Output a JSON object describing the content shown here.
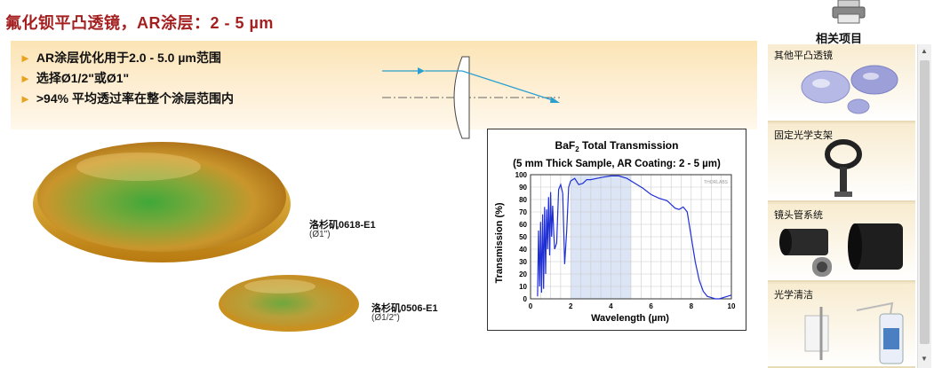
{
  "page": {
    "title": "氟化钡平凸透镜，AR涂层：2 - 5 µm"
  },
  "features": [
    "AR涂层优化用于2.0 - 5.0 µm范围",
    "选择Ø1/2\"或Ø1\"",
    ">94% 平均透过率在整个涂层范围内"
  ],
  "lenses": [
    {
      "part": "洛杉矶0618-E1",
      "size": "(Ø1\")"
    },
    {
      "part": "洛杉矶0506-E1",
      "size": "(Ø1/2\")"
    }
  ],
  "related": {
    "title": "相关项目",
    "items": [
      {
        "label": "其他平凸透镜"
      },
      {
        "label": "固定光学支架"
      },
      {
        "label": "镜头管系统"
      },
      {
        "label": "光学清洁"
      }
    ]
  },
  "chart_data": {
    "type": "line",
    "title_line1": "BaF",
    "title_sub": "2",
    "title_rest": " Total Transmission",
    "title_line2": "(5 mm Thick Sample, AR Coating: 2 - 5 µm)",
    "xlabel": "Wavelength (µm)",
    "ylabel": "Transmission (%)",
    "xlim": [
      0,
      10
    ],
    "ylim": [
      0,
      100
    ],
    "xticks": [
      0,
      2,
      4,
      6,
      8,
      10
    ],
    "yticks": [
      0,
      10,
      20,
      30,
      40,
      50,
      60,
      70,
      80,
      90,
      100
    ],
    "watermark": "THORLABS",
    "shaded_region": [
      2,
      5
    ],
    "colors": {
      "line": "#1f2fd6",
      "shade": "#dbe5f5",
      "grid": "#cccccc"
    },
    "series": [
      {
        "x": [
          0.35,
          0.4,
          0.45,
          0.5,
          0.55,
          0.6,
          0.65,
          0.7,
          0.75,
          0.8,
          0.85,
          0.9,
          0.95,
          1.0,
          1.05,
          1.1,
          1.15,
          1.2,
          1.3,
          1.4,
          1.5,
          1.6,
          1.7,
          1.8,
          1.9,
          2.0,
          2.2,
          2.4,
          2.6,
          2.8,
          3.0,
          3.3,
          3.6,
          4.0,
          4.4,
          4.8,
          5.2,
          5.6,
          6.0,
          6.4,
          6.8,
          7.0,
          7.2,
          7.4,
          7.6,
          7.8,
          8.0,
          8.2,
          8.4,
          8.6,
          8.8,
          9.0,
          9.2,
          9.4,
          9.6,
          9.8,
          10.0
        ],
        "values": [
          2,
          55,
          10,
          62,
          5,
          68,
          8,
          74,
          20,
          72,
          40,
          82,
          35,
          86,
          50,
          75,
          55,
          40,
          45,
          88,
          92,
          85,
          28,
          55,
          90,
          95,
          97,
          92,
          93,
          96,
          96,
          97,
          98,
          99,
          99,
          97,
          93,
          89,
          84,
          81,
          79,
          76,
          73,
          72,
          74,
          70,
          50,
          30,
          15,
          6,
          2,
          1,
          0,
          0,
          1,
          2,
          3
        ]
      }
    ]
  }
}
